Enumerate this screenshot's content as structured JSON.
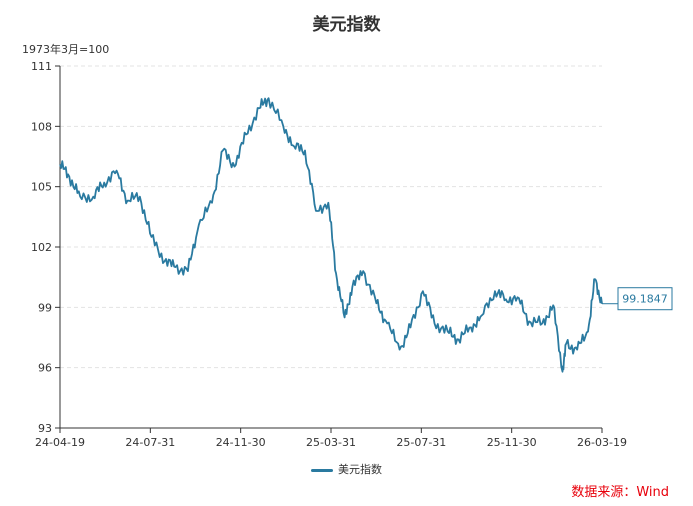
{
  "chart_data": {
    "type": "line",
    "title": "美元指数",
    "ylabel": "1973年3月=100",
    "ylim": [
      93,
      111
    ],
    "yticks": [
      93,
      96,
      99,
      102,
      105,
      108,
      111
    ],
    "xticks": [
      "24-04-19",
      "24-07-31",
      "24-11-30",
      "25-03-31",
      "25-07-31",
      "25-11-30",
      "26-03-19"
    ],
    "series": [
      {
        "name": "美元指数",
        "color": "#2a7aa0",
        "x": [
          "2024-04-19",
          "2024-05-01",
          "2024-05-15",
          "2024-06-01",
          "2024-06-15",
          "2024-07-01",
          "2024-07-15",
          "2024-07-31",
          "2024-08-15",
          "2024-09-01",
          "2024-09-15",
          "2024-10-01",
          "2024-10-15",
          "2024-11-01",
          "2024-11-15",
          "2024-11-30",
          "2024-12-15",
          "2025-01-01",
          "2025-01-13",
          "2025-02-01",
          "2025-02-15",
          "2025-03-01",
          "2025-03-15",
          "2025-03-31",
          "2025-04-10",
          "2025-04-21",
          "2025-05-01",
          "2025-05-15",
          "2025-06-01",
          "2025-06-15",
          "2025-07-01",
          "2025-07-15",
          "2025-07-31",
          "2025-08-15",
          "2025-09-01",
          "2025-09-15",
          "2025-10-01",
          "2025-10-15",
          "2025-11-01",
          "2025-11-15",
          "2025-11-30",
          "2025-12-15",
          "2026-01-01",
          "2026-01-15",
          "2026-01-27",
          "2026-02-01",
          "2026-02-15",
          "2026-03-01",
          "2026-03-10",
          "2026-03-19"
        ],
        "values": [
          106.1,
          105.5,
          104.5,
          104.5,
          105.2,
          105.8,
          104.3,
          104.5,
          102.5,
          101.3,
          101.0,
          100.8,
          103.1,
          104.2,
          106.8,
          106.0,
          107.6,
          108.9,
          109.4,
          108.0,
          107.0,
          106.8,
          103.8,
          104.2,
          100.7,
          98.5,
          100.0,
          100.8,
          99.2,
          98.2,
          96.9,
          98.0,
          99.8,
          98.2,
          97.8,
          97.4,
          98.0,
          98.6,
          99.8,
          99.4,
          99.5,
          98.3,
          98.2,
          99.1,
          95.8,
          97.2,
          96.9,
          97.8,
          100.4,
          99.18
        ]
      }
    ],
    "end_label": "99.1847",
    "legend_label": "美元指数",
    "source": "数据来源：Wind"
  }
}
